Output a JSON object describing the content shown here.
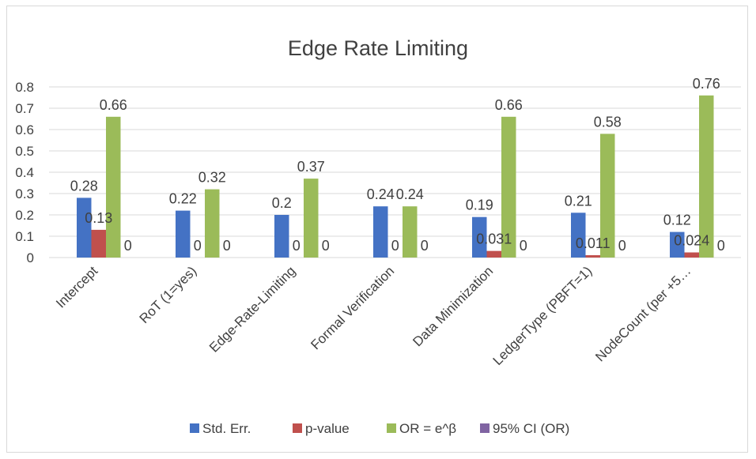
{
  "chart_data": {
    "type": "bar",
    "title": "Edge Rate Limiting",
    "xlabel": "",
    "ylabel": "",
    "ylim": [
      0,
      0.8
    ],
    "yticks": [
      "0",
      "0.1",
      "0.2",
      "0.3",
      "0.4",
      "0.5",
      "0.6",
      "0.7",
      "0.8"
    ],
    "grid": true,
    "legend_position": "bottom",
    "categories": [
      "Intercept",
      "RoT (1=yes)",
      "Edge-Rate-Limiting",
      "Formal Verification",
      "Data Minimization",
      "LedgerType (PBFT=1)",
      "NodeCount (per +5…"
    ],
    "series": [
      {
        "name": "Std. Err.",
        "color": "#4472c4",
        "values": [
          0.28,
          0.22,
          0.2,
          0.24,
          0.19,
          0.21,
          0.12
        ],
        "labels": [
          "0.28",
          "0.22",
          "0.2",
          "0.24",
          "0.19",
          "0.21",
          "0.12"
        ]
      },
      {
        "name": "p-value",
        "color": "#c0504d",
        "values": [
          0.13,
          0,
          0,
          0,
          0.031,
          0.011,
          0.024
        ],
        "labels": [
          "0.13",
          "0",
          "0",
          "0",
          "0.031",
          "0.011",
          "0.024"
        ]
      },
      {
        "name": "OR = e^β",
        "color": "#9bbb59",
        "values": [
          0.66,
          0.32,
          0.37,
          0.24,
          0.66,
          0.58,
          0.76
        ],
        "labels": [
          "0.66",
          "0.32",
          "0.37",
          "0.24",
          "0.66",
          "0.58",
          "0.76"
        ]
      },
      {
        "name": "95% CI (OR)",
        "color": "#8064a2",
        "values": [
          0,
          0,
          0,
          0,
          0,
          0,
          0
        ],
        "labels": [
          "0",
          "0",
          "0",
          "0",
          "0",
          "0",
          "0"
        ]
      }
    ]
  }
}
